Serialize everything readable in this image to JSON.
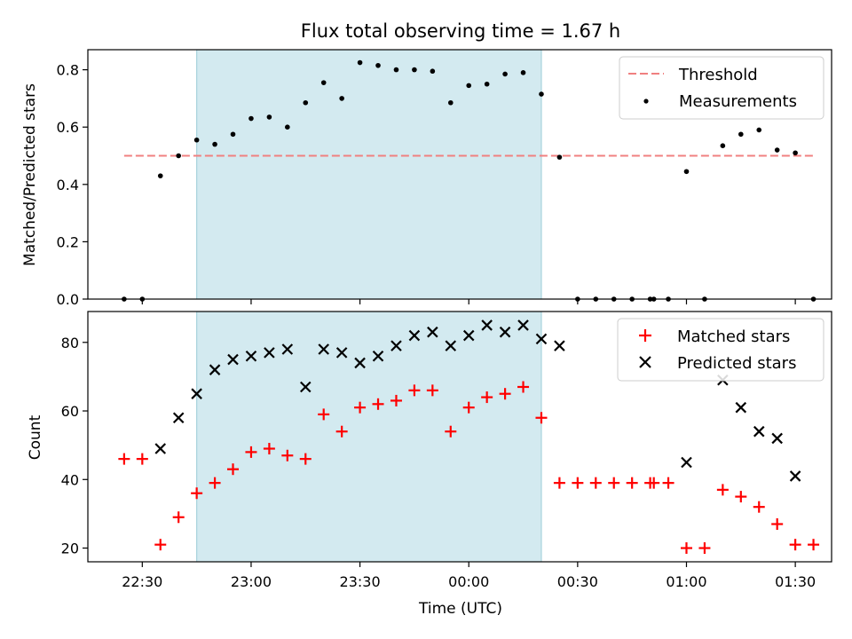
{
  "chart_data": [
    {
      "type": "scatter",
      "title": "Flux total observing time = 1.67 h",
      "xlabel": "",
      "ylabel": "Matched/Predicted stars",
      "ylim": [
        0,
        0.87
      ],
      "xlim": [
        "22:15",
        "01:40"
      ],
      "yticks": [
        "0.0",
        "0.2",
        "0.4",
        "0.6",
        "0.8"
      ],
      "ytick_values": [
        0,
        0.2,
        0.4,
        0.6,
        0.8
      ],
      "shaded_region": {
        "start": "22:45",
        "end": "00:20",
        "color": "#d3eaf0"
      },
      "threshold": {
        "name": "Threshold",
        "value": 0.5,
        "x_start": "22:25",
        "x_end": "01:35",
        "color": "#f08080"
      },
      "legend": {
        "position": "top-right",
        "entries": [
          "Threshold",
          "Measurements"
        ]
      },
      "series": [
        {
          "name": "Measurements",
          "color": "#000000",
          "marker": "dot",
          "x": [
            "22:25",
            "22:30",
            "22:35",
            "22:40",
            "22:45",
            "22:50",
            "22:55",
            "23:00",
            "23:05",
            "23:10",
            "23:15",
            "23:20",
            "23:25",
            "23:30",
            "23:35",
            "23:40",
            "23:45",
            "23:50",
            "23:55",
            "00:00",
            "00:05",
            "00:10",
            "00:15",
            "00:20",
            "00:25",
            "00:30",
            "00:35",
            "00:40",
            "00:45",
            "00:50",
            "00:51",
            "00:55",
            "01:00",
            "01:05",
            "01:10",
            "01:15",
            "01:20",
            "01:25",
            "01:30",
            "01:35"
          ],
          "y": [
            0.0,
            0.0,
            0.43,
            0.5,
            0.555,
            0.54,
            0.575,
            0.63,
            0.635,
            0.6,
            0.685,
            0.755,
            0.7,
            0.825,
            0.815,
            0.8,
            0.8,
            0.795,
            0.685,
            0.745,
            0.75,
            0.785,
            0.79,
            0.715,
            0.495,
            0.0,
            0.0,
            0.0,
            0.0,
            0.0,
            0.0,
            0.0,
            0.445,
            0.0,
            0.535,
            0.575,
            0.59,
            0.52,
            0.51,
            0.0
          ]
        }
      ]
    },
    {
      "type": "scatter",
      "title": "",
      "xlabel": "Time (UTC)",
      "ylabel": "Count",
      "ylim": [
        16,
        89
      ],
      "xlim": [
        "22:15",
        "01:40"
      ],
      "yticks": [
        "20",
        "40",
        "60",
        "80"
      ],
      "ytick_values": [
        20,
        40,
        60,
        80
      ],
      "xticks": [
        "22:30",
        "23:00",
        "23:30",
        "00:00",
        "00:30",
        "01:00",
        "01:30"
      ],
      "shaded_region": {
        "start": "22:45",
        "end": "00:20",
        "color": "#d3eaf0"
      },
      "legend": {
        "position": "top-right",
        "entries": [
          "Matched stars",
          "Predicted stars"
        ]
      },
      "series": [
        {
          "name": "Matched stars",
          "color": "#ff0000",
          "marker": "plus",
          "x": [
            "22:25",
            "22:30",
            "22:35",
            "22:40",
            "22:45",
            "22:50",
            "22:55",
            "23:00",
            "23:05",
            "23:10",
            "23:15",
            "23:20",
            "23:25",
            "23:30",
            "23:35",
            "23:40",
            "23:45",
            "23:50",
            "23:55",
            "00:00",
            "00:05",
            "00:10",
            "00:15",
            "00:20",
            "00:25",
            "00:30",
            "00:35",
            "00:40",
            "00:45",
            "00:50",
            "00:51",
            "00:55",
            "01:00",
            "01:05",
            "01:10",
            "01:15",
            "01:20",
            "01:25",
            "01:30",
            "01:35"
          ],
          "y": [
            46,
            46,
            21,
            29,
            36,
            39,
            43,
            48,
            49,
            47,
            46,
            59,
            54,
            61,
            62,
            63,
            66,
            66,
            54,
            61,
            64,
            65,
            67,
            58,
            39,
            39,
            39,
            39,
            39,
            39,
            39,
            39,
            20,
            20,
            37,
            35,
            32,
            27,
            21,
            21
          ]
        },
        {
          "name": "Predicted stars",
          "color": "#000000",
          "marker": "x",
          "x": [
            "22:35",
            "22:40",
            "22:45",
            "22:50",
            "22:55",
            "23:00",
            "23:05",
            "23:10",
            "23:15",
            "23:20",
            "23:25",
            "23:30",
            "23:35",
            "23:40",
            "23:45",
            "23:50",
            "23:55",
            "00:00",
            "00:05",
            "00:10",
            "00:15",
            "00:20",
            "00:25",
            "01:00",
            "01:10",
            "01:15",
            "01:20",
            "01:25",
            "01:30"
          ],
          "y": [
            49,
            58,
            65,
            72,
            75,
            76,
            77,
            78,
            67,
            78,
            77,
            74,
            76,
            79,
            82,
            83,
            79,
            82,
            85,
            83,
            85,
            81,
            79,
            45,
            69,
            61,
            54,
            52,
            41
          ]
        }
      ]
    }
  ]
}
